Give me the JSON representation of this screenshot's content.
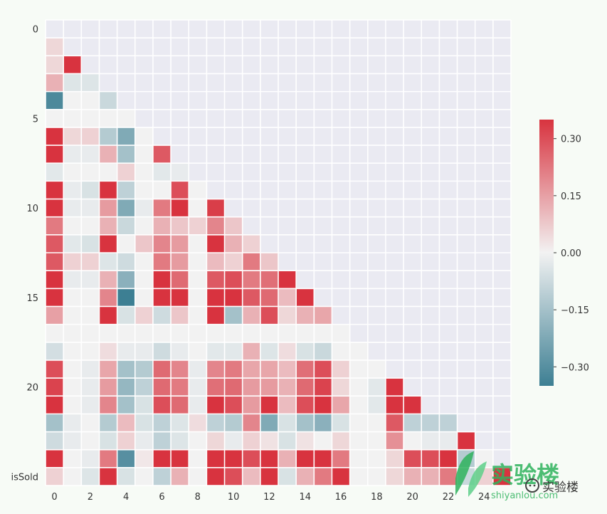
{
  "chart_data": {
    "type": "heatmap",
    "title": "",
    "xlabel": "",
    "ylabel": "",
    "mask": "upper-triangle",
    "n": 26,
    "x_tick_labels": [
      "0",
      "2",
      "4",
      "6",
      "8",
      "10",
      "12",
      "14",
      "16",
      "18",
      "20",
      "22",
      "24"
    ],
    "x_tick_indices": [
      0,
      2,
      4,
      6,
      8,
      10,
      12,
      14,
      16,
      18,
      20,
      22,
      24
    ],
    "y_tick_labels": [
      "0",
      "5",
      "10",
      "15",
      "20",
      "isSold"
    ],
    "y_tick_indices": [
      0,
      5,
      10,
      15,
      20,
      25
    ],
    "colorbar": {
      "vmin": -0.35,
      "vmax": 0.35,
      "ticks": [
        0.3,
        0.15,
        0.0,
        -0.15,
        -0.3
      ],
      "tick_labels": [
        "0.30",
        "0.15",
        "0.00",
        "−0.15",
        "−0.30"
      ],
      "cmap": [
        "#3d7f93",
        "#f2f2f2",
        "#d8333f"
      ]
    },
    "lower_triangle_values": [
      [],
      [
        0.05
      ],
      [
        0.05,
        0.4
      ],
      [
        0.12,
        -0.04,
        -0.04
      ],
      [
        -0.32,
        0.0,
        0.0,
        -0.08
      ],
      [
        0.0,
        0.0,
        0.0,
        0.0,
        0.0
      ],
      [
        0.38,
        0.05,
        0.06,
        -0.12,
        -0.22,
        0.0
      ],
      [
        0.38,
        -0.02,
        -0.02,
        0.12,
        -0.15,
        0.0,
        0.28
      ],
      [
        -0.03,
        0.0,
        0.0,
        0.0,
        0.06,
        0.0,
        -0.03,
        -0.02
      ],
      [
        0.38,
        -0.02,
        -0.05,
        0.38,
        -0.1,
        0.0,
        0.0,
        0.3,
        0.0
      ],
      [
        0.38,
        -0.02,
        -0.02,
        0.16,
        -0.22,
        -0.02,
        0.22,
        0.38,
        0.0,
        0.33
      ],
      [
        0.22,
        0.0,
        0.0,
        0.12,
        -0.08,
        0.0,
        0.12,
        0.08,
        0.06,
        0.2,
        0.08
      ],
      [
        0.28,
        -0.03,
        -0.05,
        0.38,
        0.0,
        0.08,
        0.2,
        0.16,
        0.0,
        0.38,
        0.12,
        0.06
      ],
      [
        0.28,
        0.06,
        0.06,
        -0.04,
        -0.07,
        0.0,
        0.22,
        0.16,
        0.0,
        0.1,
        0.06,
        0.22,
        0.08
      ],
      [
        0.38,
        -0.02,
        -0.02,
        0.12,
        -0.2,
        0.0,
        0.38,
        0.25,
        0.0,
        0.28,
        0.3,
        0.22,
        0.24,
        0.38
      ],
      [
        0.38,
        0.0,
        0.0,
        0.2,
        -0.35,
        0.0,
        0.38,
        0.38,
        0.0,
        0.35,
        0.38,
        0.28,
        0.25,
        0.1,
        0.38
      ],
      [
        0.15,
        0.0,
        0.0,
        0.38,
        -0.05,
        0.06,
        -0.07,
        0.08,
        0.0,
        0.38,
        -0.15,
        0.12,
        0.3,
        0.05,
        0.12,
        0.14
      ],
      [
        0.0,
        0.0,
        0.0,
        0.0,
        0.0,
        0.0,
        0.0,
        0.0,
        0.0,
        0.0,
        0.0,
        0.0,
        0.0,
        0.0,
        0.0,
        0.0,
        0.0
      ],
      [
        -0.06,
        0.0,
        0.0,
        0.04,
        -0.02,
        -0.02,
        -0.07,
        -0.02,
        0.0,
        -0.03,
        -0.03,
        0.12,
        -0.04,
        0.04,
        -0.05,
        -0.08,
        0.0,
        0.0
      ],
      [
        0.3,
        0.0,
        -0.02,
        0.14,
        -0.15,
        -0.12,
        0.25,
        0.2,
        -0.02,
        0.2,
        0.22,
        0.14,
        0.14,
        0.1,
        0.24,
        0.3,
        0.06,
        0.0,
        0.0
      ],
      [
        0.32,
        0.0,
        -0.02,
        0.16,
        -0.18,
        -0.1,
        0.25,
        0.22,
        -0.02,
        0.24,
        0.25,
        0.16,
        0.16,
        0.12,
        0.25,
        0.32,
        0.05,
        0.0,
        -0.03,
        0.38
      ],
      [
        0.38,
        0.0,
        -0.02,
        0.2,
        -0.15,
        -0.05,
        0.3,
        0.25,
        -0.02,
        0.38,
        0.3,
        0.16,
        0.38,
        0.1,
        0.3,
        0.38,
        0.14,
        0.0,
        -0.03,
        0.38,
        0.38
      ],
      [
        -0.15,
        -0.02,
        0.0,
        -0.12,
        0.1,
        -0.05,
        -0.1,
        -0.04,
        0.04,
        -0.1,
        -0.12,
        0.2,
        -0.22,
        -0.05,
        -0.15,
        -0.2,
        -0.05,
        0.0,
        0.0,
        0.28,
        -0.1,
        -0.1,
        -0.1
      ],
      [
        -0.07,
        -0.02,
        0.0,
        -0.05,
        0.06,
        -0.02,
        -0.1,
        -0.04,
        0.0,
        0.05,
        -0.02,
        0.06,
        0.03,
        -0.05,
        0.03,
        0.0,
        0.05,
        0.0,
        0.0,
        0.18,
        0.0,
        -0.02,
        -0.02,
        0.38
      ],
      [
        0.38,
        0.0,
        -0.02,
        0.22,
        -0.3,
        0.02,
        0.38,
        0.38,
        0.0,
        0.38,
        0.38,
        0.3,
        0.38,
        0.12,
        0.38,
        0.38,
        0.22,
        0.0,
        0.0,
        0.05,
        0.3,
        0.3,
        0.38,
        -0.12,
        0.0
      ],
      [
        0.06,
        0.0,
        -0.04,
        0.38,
        -0.05,
        0.0,
        -0.1,
        0.12,
        0.0,
        0.38,
        0.3,
        0.1,
        0.38,
        -0.05,
        0.12,
        0.22,
        0.38,
        0.0,
        0.0,
        0.05,
        0.12,
        0.12,
        0.22,
        -0.08,
        0.06,
        0.38
      ]
    ]
  },
  "watermark": {
    "logo_text": "实验楼",
    "logo_sub": "shiyanlou.com",
    "badge_text": "实验楼"
  }
}
